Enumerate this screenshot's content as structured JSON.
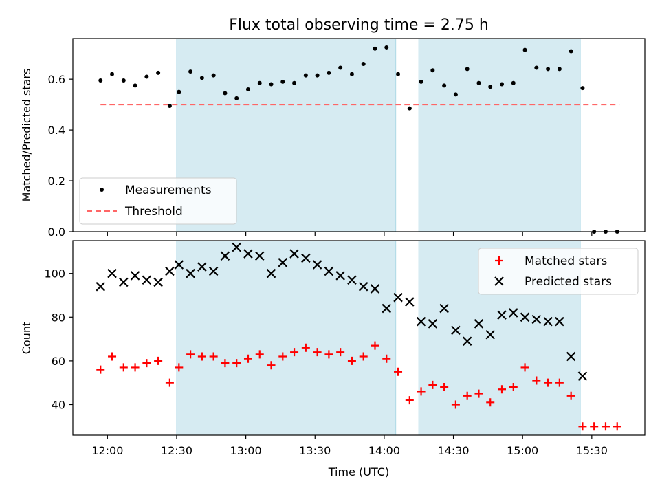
{
  "title": "Flux total observing time = 2.75 h",
  "colors": {
    "shade": "#add8e6",
    "measurement": "#000000",
    "threshold": "#ff6666",
    "matched": "#ff0000",
    "predicted": "#000000"
  },
  "chart_data": [
    {
      "type": "scatter",
      "ylabel": "Matched/Predicted stars",
      "ylim": [
        0,
        0.76
      ],
      "yticks": [
        0.0,
        0.2,
        0.4,
        0.6
      ],
      "ytick_labels": [
        "0.0",
        "0.2",
        "0.4",
        "0.6"
      ],
      "xlim": [
        "11:45",
        "15:53"
      ],
      "legend": {
        "placement": "lower-left",
        "entries": [
          "Measurements",
          "Threshold"
        ]
      },
      "threshold": 0.5,
      "threshold_x": [
        "11:57",
        "15:42"
      ],
      "shaded_intervals": [
        [
          "12:30",
          "14:05"
        ],
        [
          "14:15",
          "15:25"
        ]
      ],
      "series": [
        {
          "name": "Measurements",
          "marker": "dot",
          "x": [
            "11:57",
            "12:02",
            "12:07",
            "12:12",
            "12:17",
            "12:22",
            "12:27",
            "12:31",
            "12:36",
            "12:41",
            "12:46",
            "12:51",
            "12:56",
            "13:01",
            "13:06",
            "13:11",
            "13:16",
            "13:21",
            "13:26",
            "13:31",
            "13:36",
            "13:41",
            "13:46",
            "13:51",
            "13:56",
            "14:01",
            "14:06",
            "14:11",
            "14:16",
            "14:21",
            "14:26",
            "14:31",
            "14:36",
            "14:41",
            "14:46",
            "14:51",
            "14:56",
            "15:01",
            "15:06",
            "15:11",
            "15:16",
            "15:21",
            "15:26",
            "15:31",
            "15:36",
            "15:41"
          ],
          "y": [
            0.595,
            0.62,
            0.595,
            0.575,
            0.61,
            0.625,
            0.495,
            0.55,
            0.63,
            0.605,
            0.615,
            0.545,
            0.525,
            0.56,
            0.585,
            0.58,
            0.59,
            0.585,
            0.615,
            0.615,
            0.625,
            0.645,
            0.62,
            0.66,
            0.72,
            0.725,
            0.62,
            0.485,
            0.59,
            0.635,
            0.575,
            0.54,
            0.64,
            0.585,
            0.57,
            0.58,
            0.585,
            0.715,
            0.645,
            0.64,
            0.64,
            0.71,
            0.565,
            0.0,
            0.0,
            0.0
          ]
        }
      ]
    },
    {
      "type": "scatter",
      "ylabel": "Count",
      "xlabel": "Time (UTC)",
      "ylim": [
        26,
        115
      ],
      "yticks": [
        40,
        60,
        80,
        100
      ],
      "ytick_labels": [
        "40",
        "60",
        "80",
        "100"
      ],
      "xlim": [
        "11:45",
        "15:53"
      ],
      "xticks": [
        "12:00",
        "12:30",
        "13:00",
        "13:30",
        "14:00",
        "14:30",
        "15:00",
        "15:30"
      ],
      "xtick_labels": [
        "12:00",
        "12:30",
        "13:00",
        "13:30",
        "14:00",
        "14:30",
        "15:00",
        "15:30"
      ],
      "legend": {
        "placement": "upper-right",
        "entries": [
          "Matched stars",
          "Predicted stars"
        ]
      },
      "shaded_intervals": [
        [
          "12:30",
          "14:05"
        ],
        [
          "14:15",
          "15:25"
        ]
      ],
      "series": [
        {
          "name": "Matched stars",
          "marker": "plus",
          "x": [
            "11:57",
            "12:02",
            "12:07",
            "12:12",
            "12:17",
            "12:22",
            "12:27",
            "12:31",
            "12:36",
            "12:41",
            "12:46",
            "12:51",
            "12:56",
            "13:01",
            "13:06",
            "13:11",
            "13:16",
            "13:21",
            "13:26",
            "13:31",
            "13:36",
            "13:41",
            "13:46",
            "13:51",
            "13:56",
            "14:01",
            "14:06",
            "14:11",
            "14:16",
            "14:21",
            "14:26",
            "14:31",
            "14:36",
            "14:41",
            "14:46",
            "14:51",
            "14:56",
            "15:01",
            "15:06",
            "15:11",
            "15:16",
            "15:21",
            "15:26",
            "15:31",
            "15:36",
            "15:41"
          ],
          "y": [
            56,
            62,
            57,
            57,
            59,
            60,
            50,
            57,
            63,
            62,
            62,
            59,
            59,
            61,
            63,
            58,
            62,
            64,
            66,
            64,
            63,
            64,
            60,
            62,
            67,
            61,
            55,
            42,
            46,
            49,
            48,
            40,
            44,
            45,
            41,
            47,
            48,
            57,
            51,
            50,
            50,
            44,
            30,
            30,
            30,
            30
          ]
        },
        {
          "name": "Predicted stars",
          "marker": "x",
          "x": [
            "11:57",
            "12:02",
            "12:07",
            "12:12",
            "12:17",
            "12:22",
            "12:27",
            "12:31",
            "12:36",
            "12:41",
            "12:46",
            "12:51",
            "12:56",
            "13:01",
            "13:06",
            "13:11",
            "13:16",
            "13:21",
            "13:26",
            "13:31",
            "13:36",
            "13:41",
            "13:46",
            "13:51",
            "13:56",
            "14:01",
            "14:06",
            "14:11",
            "14:16",
            "14:21",
            "14:26",
            "14:31",
            "14:36",
            "14:41",
            "14:46",
            "14:51",
            "14:56",
            "15:01",
            "15:06",
            "15:11",
            "15:16",
            "15:21",
            "15:26"
          ],
          "y": [
            94,
            100,
            96,
            99,
            97,
            96,
            101,
            104,
            100,
            103,
            101,
            108,
            112,
            109,
            108,
            100,
            105,
            109,
            107,
            104,
            101,
            99,
            97,
            94,
            93,
            84,
            89,
            87,
            78,
            77,
            84,
            74,
            69,
            77,
            72,
            81,
            82,
            80,
            79,
            78,
            78,
            62,
            53
          ]
        }
      ]
    }
  ]
}
